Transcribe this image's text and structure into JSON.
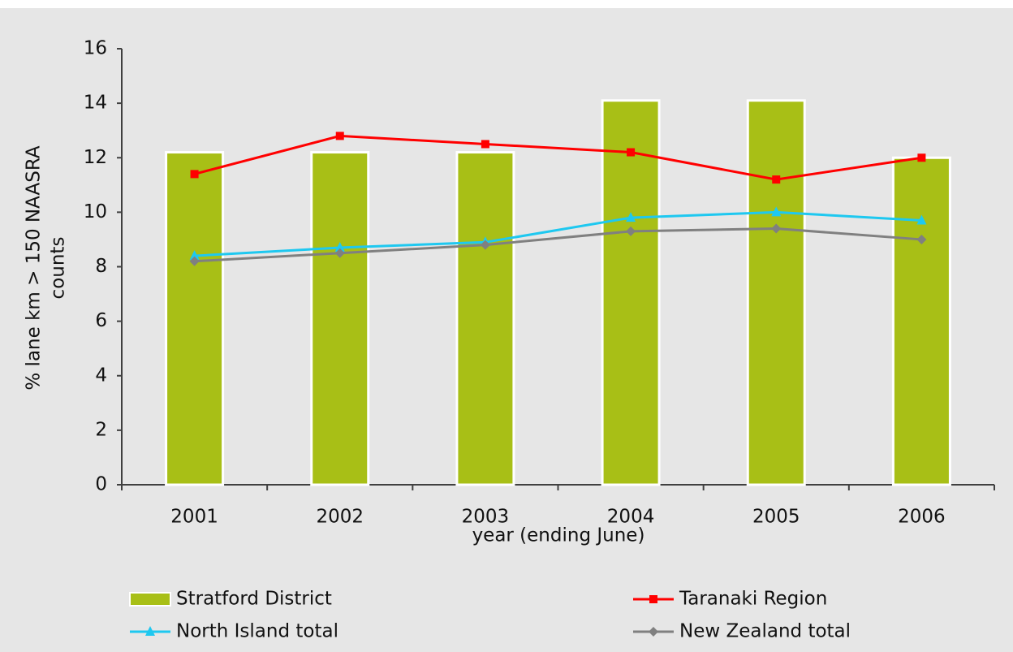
{
  "chart_data": {
    "type": "bar",
    "categories": [
      "2001",
      "2002",
      "2003",
      "2004",
      "2005",
      "2006"
    ],
    "x_label": "year (ending June)",
    "y_label": [
      "% lane km > 150 NAASRA",
      "counts"
    ],
    "ylim": [
      0,
      16
    ],
    "yticks": [
      0,
      2,
      4,
      6,
      8,
      10,
      12,
      14,
      16
    ],
    "series": [
      {
        "name": "Stratford District",
        "type": "bar",
        "color": "#a8bf16",
        "values": [
          12.2,
          12.2,
          12.2,
          14.1,
          14.1,
          12.0
        ]
      },
      {
        "name": "Taranaki Region",
        "type": "line",
        "marker": "square",
        "color": "#ff0000",
        "values": [
          11.4,
          12.8,
          12.5,
          12.2,
          11.2,
          12.0
        ]
      },
      {
        "name": "North Island total",
        "type": "line",
        "marker": "triangle",
        "color": "#1ec8f0",
        "values": [
          8.4,
          8.7,
          8.9,
          9.8,
          10.0,
          9.7
        ]
      },
      {
        "name": "New Zealand total",
        "type": "line",
        "marker": "diamond",
        "color": "#808080",
        "values": [
          8.2,
          8.5,
          8.8,
          9.3,
          9.4,
          9.0
        ]
      }
    ]
  }
}
